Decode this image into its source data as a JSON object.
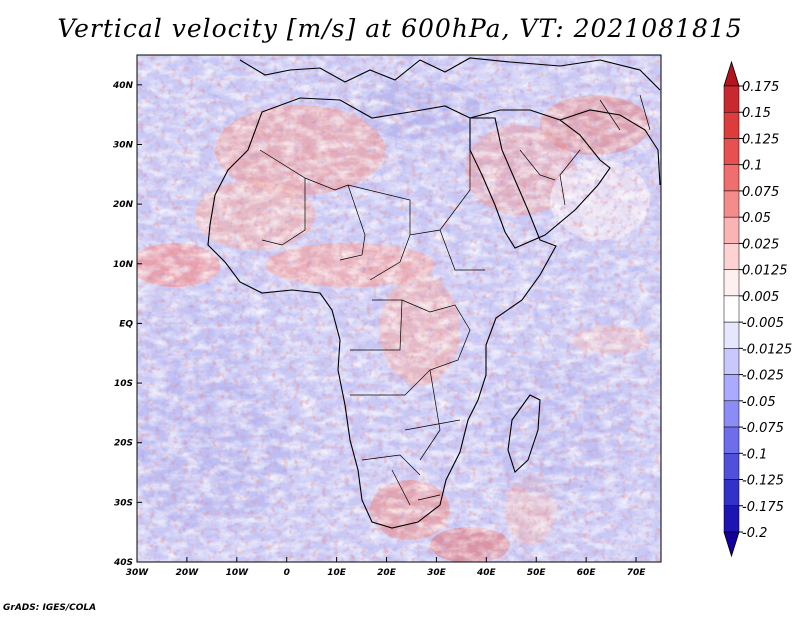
{
  "title": "Vertical velocity [m/s] at 600hPa, VT: 2021081815",
  "credit": "GrADS: IGES/COLA",
  "map": {
    "variable": "Vertical velocity",
    "units": "m/s",
    "level": "600hPa",
    "valid_time": "2021081815",
    "lon_range": [
      -30,
      75
    ],
    "lat_range": [
      -40,
      45
    ],
    "lon_ticks": [
      "30W",
      "20W",
      "10W",
      "0",
      "10E",
      "20E",
      "30E",
      "40E",
      "50E",
      "60E",
      "70E"
    ],
    "lat_ticks": [
      "40N",
      "30N",
      "20N",
      "10N",
      "EQ",
      "10S",
      "20S",
      "30S",
      "40S"
    ]
  },
  "colorbar": {
    "levels": [
      "0.175",
      "0.15",
      "0.125",
      "0.1",
      "0.075",
      "0.05",
      "0.025",
      "0.0125",
      "0.005",
      "-0.005",
      "-0.0125",
      "-0.025",
      "-0.05",
      "-0.075",
      "-0.1",
      "-0.125",
      "-0.175",
      "-0.2"
    ],
    "colors": [
      "#b4141e",
      "#c82830",
      "#dc3c3c",
      "#e65050",
      "#f06e6e",
      "#f58c8c",
      "#fab4b4",
      "#fcd2d2",
      "#fff0f0",
      "#ffffff",
      "#e6e6ff",
      "#c8c8ff",
      "#aaaaff",
      "#8c8cf5",
      "#6e6eeb",
      "#5050dc",
      "#3232c8",
      "#1e14b4",
      "#1400a0"
    ]
  }
}
